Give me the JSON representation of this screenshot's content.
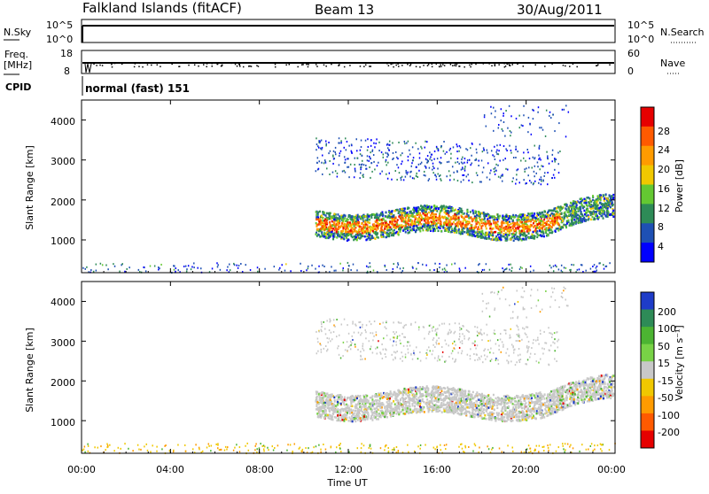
{
  "header": {
    "station": "Falkland Islands (fitACF)",
    "beam": "Beam 13",
    "date": "30/Aug/2011"
  },
  "nsky_panel": {
    "left_label": "N.Sky",
    "right_label": "N.Search",
    "left_ticks": [
      "10^5",
      "10^0"
    ],
    "right_ticks": [
      "10^5",
      "10^0"
    ]
  },
  "freq_panel": {
    "left_label_1": "Freq.",
    "left_label_2": "[MHz]",
    "right_label": "Nave",
    "left_ticks": [
      "18",
      "8"
    ],
    "right_ticks": [
      "60",
      "0"
    ]
  },
  "cpid": {
    "label": "CPID",
    "mode": "normal (fast) 151"
  },
  "power_panel": {
    "ylabel": "Slant Range [km]",
    "yticks": [
      "4000",
      "3000",
      "2000",
      "1000"
    ],
    "colorbar_label": "Power [dB]",
    "colorbar_ticks": [
      "28",
      "24",
      "20",
      "16",
      "12",
      "8",
      "4"
    ],
    "colors": [
      "#e60000",
      "#ff5a00",
      "#ff9b00",
      "#f0c800",
      "#64c832",
      "#2e8b57",
      "#1e50b4",
      "#0000ff"
    ]
  },
  "velocity_panel": {
    "ylabel": "Slant Range [km]",
    "yticks": [
      "4000",
      "3000",
      "2000",
      "1000"
    ],
    "colorbar_label": "Velocity [m s⁻¹]",
    "colorbar_ticks": [
      "200",
      "100",
      "50",
      "15",
      "-15",
      "-50",
      "-100",
      "-200"
    ],
    "colors": [
      "#1e3cc8",
      "#2e8b57",
      "#4cb432",
      "#78d246",
      "#c8c8c8",
      "#f0c800",
      "#ff9b00",
      "#ff5a00",
      "#e60000"
    ]
  },
  "x_axis": {
    "ticks": [
      "00:00",
      "04:00",
      "08:00",
      "12:00",
      "16:00",
      "20:00",
      "00:00"
    ],
    "label": "Time UT"
  },
  "chart_data": {
    "type": "heatmap",
    "x_range_hours": [
      0,
      24
    ],
    "y_range_km": [
      180,
      4500
    ],
    "echo_regions_power": [
      {
        "t0": 10.5,
        "t1": 22.0,
        "r0": 1100,
        "r1": 1700,
        "level": "high"
      },
      {
        "t0": 10.5,
        "t1": 24.0,
        "r0": 1000,
        "r1": 2300,
        "level": "mid"
      },
      {
        "t0": 10.5,
        "t1": 21.5,
        "r0": 2500,
        "r1": 3600,
        "level": "low"
      }
    ],
    "echo_regions_velocity": [
      {
        "t0": 10.5,
        "t1": 24.0,
        "r0": 1000,
        "r1": 2300,
        "value_range": [
          -15,
          15
        ]
      }
    ]
  }
}
